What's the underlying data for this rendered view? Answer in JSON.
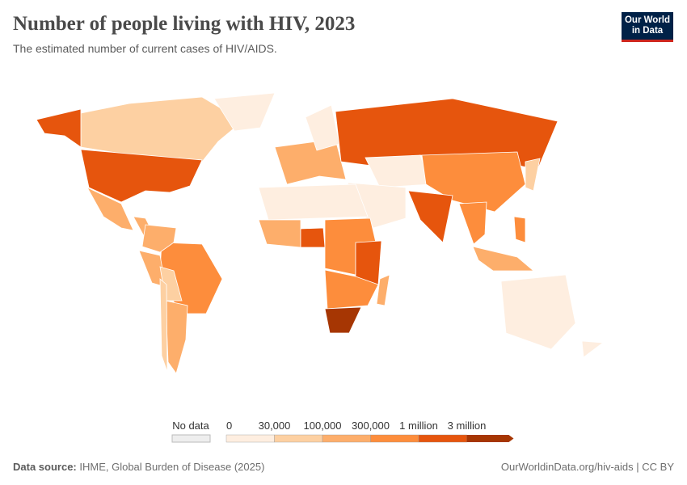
{
  "header": {
    "title": "Number of people living with HIV, 2023",
    "subtitle": "The estimated number of current cases of HIV/AIDS."
  },
  "logo": {
    "text": "Our World in Data",
    "line1": "Our World",
    "line2": "in Data"
  },
  "legend": {
    "no_data_label": "No data",
    "ticks": [
      "0",
      "30,000",
      "100,000",
      "300,000",
      "1 million",
      "3 million"
    ],
    "colors": [
      "#feeee0",
      "#fdd0a2",
      "#fdae6b",
      "#fd8d3c",
      "#e6550d",
      "#a63603"
    ],
    "no_data_color": "#eeeeee"
  },
  "map": {
    "regions": [
      {
        "id": "canada",
        "bin": 1
      },
      {
        "id": "alaska",
        "bin": 4
      },
      {
        "id": "usa",
        "bin": 4
      },
      {
        "id": "mexico",
        "bin": 2
      },
      {
        "id": "central-america",
        "bin": 2
      },
      {
        "id": "greenland",
        "bin": 0
      },
      {
        "id": "brazil",
        "bin": 3
      },
      {
        "id": "colombia-venezuela",
        "bin": 2
      },
      {
        "id": "peru",
        "bin": 2
      },
      {
        "id": "bolivia-paraguay",
        "bin": 1
      },
      {
        "id": "argentina",
        "bin": 2
      },
      {
        "id": "chile",
        "bin": 1
      },
      {
        "id": "europe",
        "bin": 2
      },
      {
        "id": "scandinavia",
        "bin": 0
      },
      {
        "id": "russia",
        "bin": 4
      },
      {
        "id": "central-asia",
        "bin": 0
      },
      {
        "id": "china",
        "bin": 3
      },
      {
        "id": "india",
        "bin": 4
      },
      {
        "id": "middle-east",
        "bin": 0
      },
      {
        "id": "north-africa",
        "bin": 0
      },
      {
        "id": "west-africa",
        "bin": 2
      },
      {
        "id": "nigeria",
        "bin": 4
      },
      {
        "id": "central-africa",
        "bin": 3
      },
      {
        "id": "east-africa",
        "bin": 4
      },
      {
        "id": "southern-africa",
        "bin": 3
      },
      {
        "id": "south-africa",
        "bin": 5
      },
      {
        "id": "madagascar",
        "bin": 2
      },
      {
        "id": "southeast-asia",
        "bin": 3
      },
      {
        "id": "indonesia",
        "bin": 2
      },
      {
        "id": "philippines",
        "bin": 3
      },
      {
        "id": "japan",
        "bin": 1
      },
      {
        "id": "australia",
        "bin": 0
      },
      {
        "id": "new-zealand",
        "bin": 0
      }
    ]
  },
  "footer": {
    "source_label": "Data source:",
    "source": "IHME, Global Burden of Disease (2025)",
    "url": "OurWorldinData.org/hiv-aids",
    "license": "| CC BY"
  }
}
